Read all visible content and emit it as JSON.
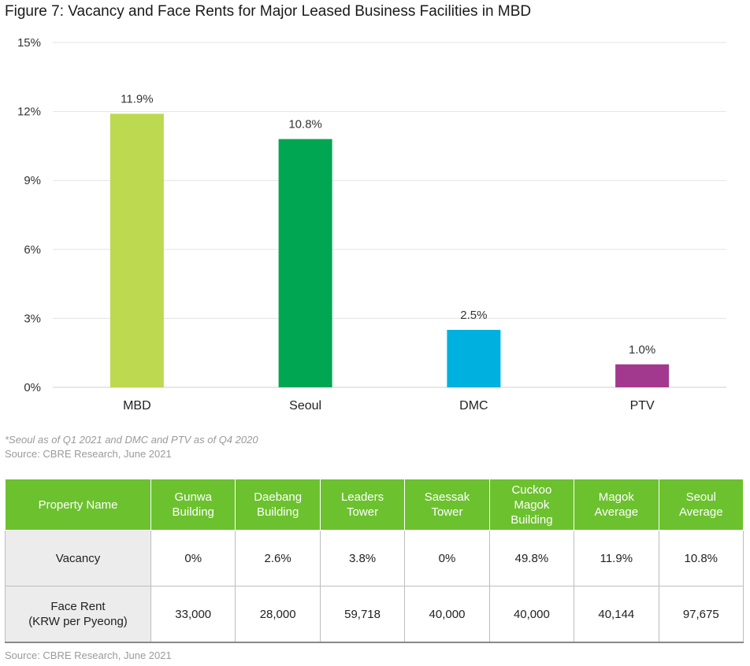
{
  "figure_title": "Figure 7: Vacancy and Face Rents for Major Leased Business Facilities in MBD",
  "chart_data": {
    "type": "bar",
    "categories": [
      "MBD",
      "Seoul",
      "DMC",
      "PTV"
    ],
    "values": [
      11.9,
      10.8,
      2.5,
      1.0
    ],
    "data_labels": [
      "11.9%",
      "10.8%",
      "2.5%",
      "1.0%"
    ],
    "colors": [
      "#bcd94f",
      "#00a651",
      "#00b0df",
      "#a3398f"
    ],
    "yticks": [
      "0%",
      "3%",
      "6%",
      "9%",
      "12%",
      "15%"
    ],
    "ylim": [
      0,
      15
    ],
    "grid": true,
    "legend": "none",
    "title": "",
    "xlabel": "",
    "ylabel": ""
  },
  "footnote": "*Seoul as of Q1 2021 and DMC and PTV as of Q4 2020",
  "source_chart": "Source: CBRE Research, June 2021",
  "table": {
    "header_color": "#6cc12e",
    "headers": [
      "Property Name",
      "Gunwa\nBuilding",
      "Daebang\nBuilding",
      "Leaders\nTower",
      "Saessak\nTower",
      "Cuckoo\nMagok\nBuilding",
      "Magok\nAverage",
      "Seoul\nAverage"
    ],
    "rows": [
      [
        "Vacancy",
        "0%",
        "2.6%",
        "3.8%",
        "0%",
        "49.8%",
        "11.9%",
        "10.8%"
      ],
      [
        "Face Rent\n(KRW per Pyeong)",
        "33,000",
        "28,000",
        "59,718",
        "40,000",
        "40,000",
        "40,144",
        "97,675"
      ]
    ]
  },
  "source_table": "Source: CBRE Research, June 2021"
}
